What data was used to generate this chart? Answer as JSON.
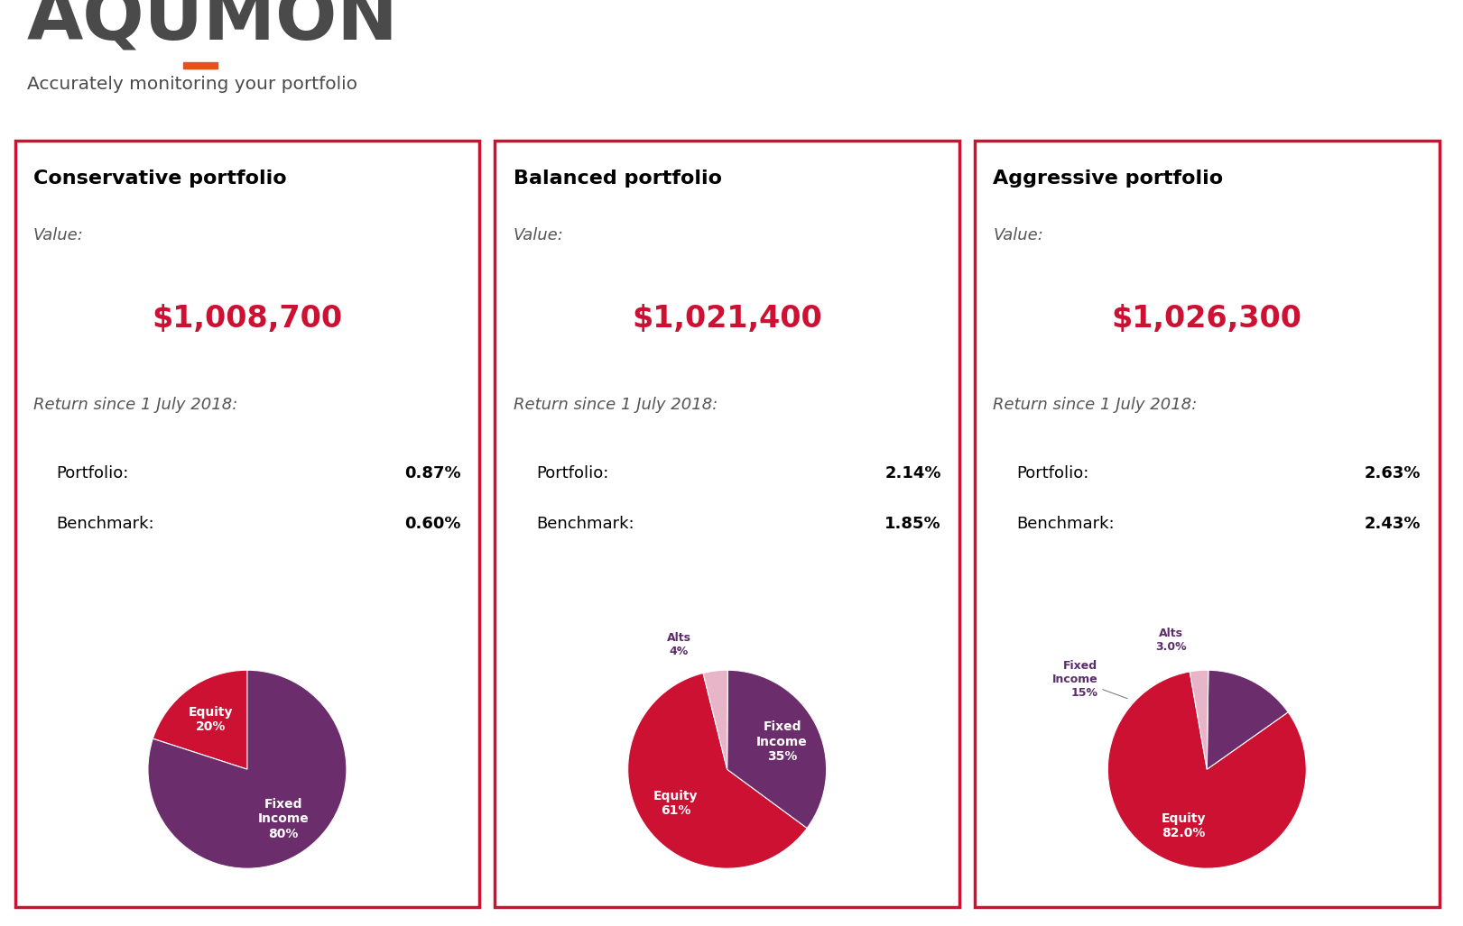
{
  "logo_text": "AQUMON",
  "logo_dot_color": "#E8521A",
  "logo_text_color": "#4a4a4a",
  "tagline": "Accurately monitoring your portfolio",
  "tagline_color": "#4a4a4a",
  "portfolios": [
    {
      "title": "Conservative portfolio",
      "value": "$1,008,700",
      "return_label": "Return since 1 July 2018:",
      "portfolio_return": "0.87%",
      "benchmark_return": "0.60%",
      "pie_slices": [
        20,
        80
      ],
      "pie_labels_inner": [
        "Equity\n20%",
        "Fixed\nIncome\n80%"
      ],
      "pie_labels_outer": [
        null,
        null
      ],
      "pie_colors": [
        "#cc1133",
        "#6b2d6b"
      ],
      "pie_startangle": 90,
      "pie_labeldistance": 0.65
    },
    {
      "title": "Balanced portfolio",
      "value": "$1,021,400",
      "return_label": "Return since 1 July 2018:",
      "portfolio_return": "2.14%",
      "benchmark_return": "1.85%",
      "pie_slices": [
        61,
        35,
        4
      ],
      "pie_labels_inner": [
        "Equity\n61%",
        "Fixed\nIncome\n35%",
        ""
      ],
      "pie_labels_outer": [
        null,
        null,
        "Alts\n4%"
      ],
      "pie_colors": [
        "#cc1133",
        "#6b2d6b",
        "#e8b4c8"
      ],
      "pie_startangle": 104,
      "pie_labeldistance": 0.65
    },
    {
      "title": "Aggressive portfolio",
      "value": "$1,026,300",
      "return_label": "Return since 1 July 2018:",
      "portfolio_return": "2.63%",
      "benchmark_return": "2.43%",
      "pie_slices": [
        82,
        15,
        3
      ],
      "pie_labels_inner": [
        "Equity\n82.0%",
        "",
        ""
      ],
      "pie_labels_outer": [
        null,
        "Fixed\nIncome\n15%",
        "Alts\n3.0%"
      ],
      "pie_colors": [
        "#cc1133",
        "#6b2d6b",
        "#e8b4c8"
      ],
      "pie_startangle": 100,
      "pie_labeldistance": 0.65
    }
  ],
  "border_color": "#cc1133",
  "value_color": "#cc1133",
  "title_color": "#000000",
  "label_color": "#000000",
  "return_label_color": "#555555",
  "bg_color": "#ffffff"
}
